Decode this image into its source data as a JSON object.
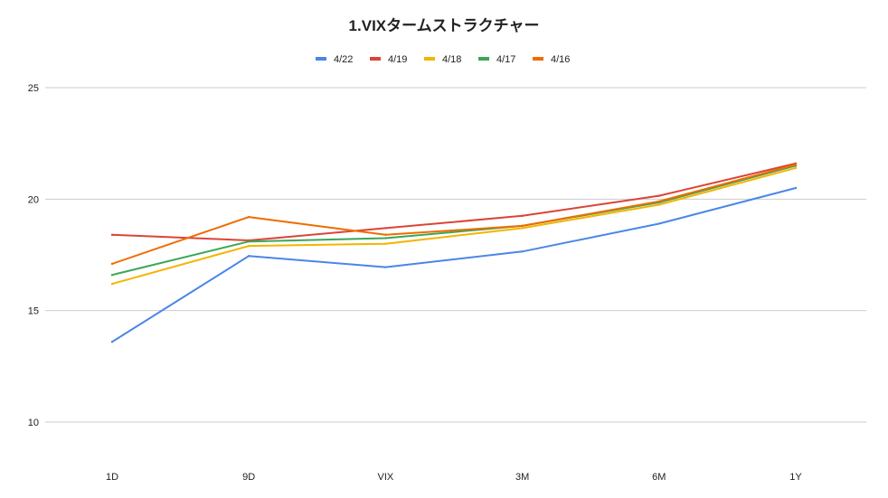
{
  "chart_data": {
    "type": "line",
    "title": "1.VIXタームストラクチャー",
    "xlabel": "",
    "ylabel": "",
    "categories": [
      "1D",
      "9D",
      "VIX",
      "3M",
      "6M",
      "1Y"
    ],
    "ylim": [
      10,
      25
    ],
    "yticks": [
      10,
      15,
      20,
      25
    ],
    "grid": true,
    "legend_position": "top",
    "series": [
      {
        "name": "4/22",
        "color": "#4a86e8",
        "values": [
          13.6,
          17.45,
          16.95,
          17.65,
          18.9,
          20.5
        ]
      },
      {
        "name": "4/19",
        "color": "#db4437",
        "values": [
          18.4,
          18.15,
          18.7,
          19.25,
          20.15,
          21.6
        ]
      },
      {
        "name": "4/18",
        "color": "#f4b400",
        "values": [
          16.2,
          17.9,
          18.0,
          18.7,
          19.75,
          21.4
        ]
      },
      {
        "name": "4/17",
        "color": "#3aa757",
        "values": [
          16.6,
          18.1,
          18.25,
          18.8,
          19.85,
          21.5
        ]
      },
      {
        "name": "4/16",
        "color": "#ef6c00",
        "values": [
          17.1,
          19.2,
          18.4,
          18.8,
          19.9,
          21.55
        ]
      }
    ]
  }
}
